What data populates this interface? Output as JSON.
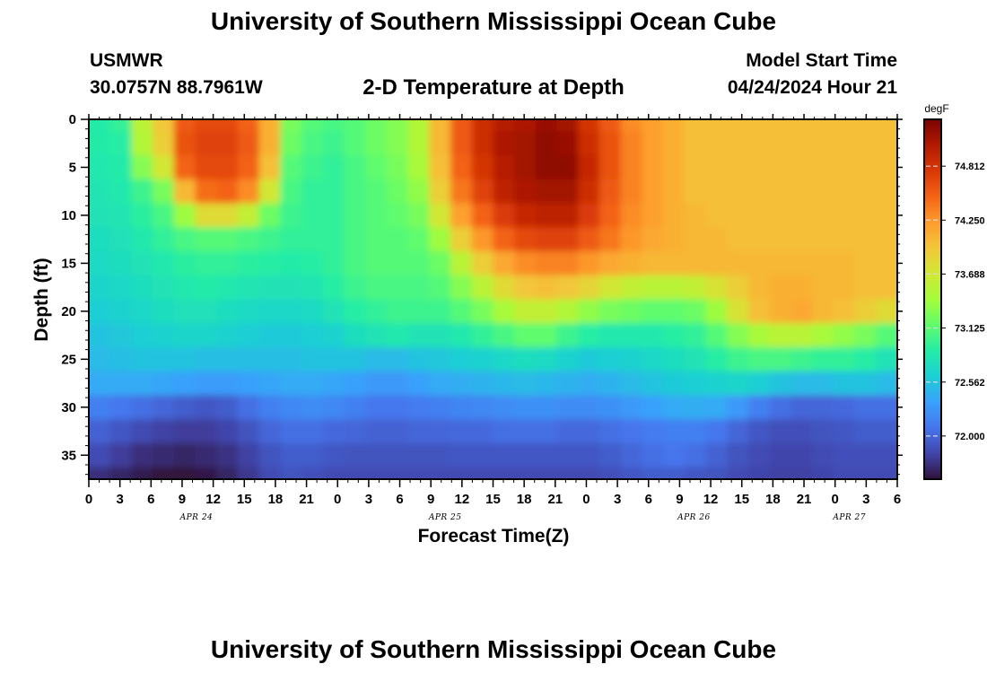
{
  "header": {
    "title": "University of Southern Mississippi Ocean Cube",
    "station": "USMWR",
    "coords": "30.0757N  88.7961W",
    "plot_title": "2-D Temperature at Depth",
    "model_label": "Model Start Time",
    "model_time": "04/24/2024 Hour 21"
  },
  "footer": {
    "title": "University of Southern Mississippi Ocean Cube"
  },
  "colors": {
    "scale": [
      "#30123b",
      "#4145ab",
      "#4675ed",
      "#39a2fc",
      "#1bcfd4",
      "#24eca6",
      "#61fc6c",
      "#a4fc3b",
      "#d1e834",
      "#f3c63a",
      "#fe9b2d",
      "#f36315",
      "#d93806",
      "#b11901",
      "#7a0402"
    ]
  },
  "chart_data": {
    "type": "heatmap",
    "title": "2-D Temperature at Depth",
    "xlabel": "Forecast Time(Z)",
    "ylabel": "Depth (ft)",
    "x_hours": [
      0,
      1,
      2,
      3,
      4,
      5,
      6,
      7,
      8,
      9,
      10,
      11,
      12,
      13,
      14,
      15,
      16,
      17,
      18,
      19,
      20,
      21,
      22,
      23,
      24,
      25,
      26
    ],
    "x_tick_labels": [
      "0",
      "3",
      "6",
      "9",
      "12",
      "15",
      "18",
      "21",
      "0",
      "3",
      "6",
      "9",
      "12",
      "15",
      "18",
      "21",
      "0",
      "3",
      "6",
      "9",
      "12",
      "15",
      "18",
      "21",
      "0",
      "3",
      "6"
    ],
    "date_labels": [
      {
        "hour": 3,
        "label": "APR 24"
      },
      {
        "hour": 11,
        "label": "APR 25"
      },
      {
        "hour": 19,
        "label": "APR 26"
      },
      {
        "hour": 24,
        "label": "APR 27"
      }
    ],
    "y_depths": [
      0,
      5,
      10,
      15,
      20,
      25,
      30,
      35
    ],
    "ylim": [
      0,
      37.5
    ],
    "colorbar": {
      "unit": "degF",
      "ticks": [
        "74.812",
        "74.250",
        "73.688",
        "73.125",
        "72.562",
        "72.000"
      ],
      "tick_values": [
        74.812,
        74.25,
        73.688,
        73.125,
        72.562,
        72.0
      ],
      "range": [
        71.55,
        75.3
      ]
    },
    "grid_depths": [
      0,
      2.5,
      5,
      7.5,
      10,
      12.5,
      15,
      17.5,
      20,
      22.5,
      25,
      27.5,
      30,
      32.5,
      35,
      37.5
    ],
    "grid_values": [
      [
        72.88,
        72.96,
        73.55,
        73.95,
        74.55,
        74.65,
        74.65,
        74.5,
        74.1,
        73.25,
        73.1,
        73.05,
        73.1,
        73.2,
        73.3,
        73.5,
        74.05,
        74.55,
        74.85,
        75.0,
        75.05,
        75.15,
        75.1,
        74.8,
        74.55,
        74.3,
        74.2,
        74.1,
        74.0,
        74.0,
        74.0,
        74.0,
        74.0,
        74.0,
        74.0,
        74.0,
        74.0,
        74.0
      ],
      [
        72.88,
        72.9,
        73.5,
        73.9,
        74.6,
        74.7,
        74.7,
        74.55,
        74.1,
        73.2,
        73.05,
        73.0,
        73.1,
        73.2,
        73.3,
        73.5,
        74.05,
        74.55,
        74.85,
        75.05,
        75.1,
        75.2,
        75.15,
        74.85,
        74.6,
        74.35,
        74.2,
        74.1,
        74.0,
        74.0,
        74.0,
        74.0,
        74.0,
        74.0,
        74.0,
        74.0,
        74.0,
        74.0
      ],
      [
        72.85,
        72.88,
        73.3,
        73.7,
        74.5,
        74.65,
        74.65,
        74.5,
        74.0,
        73.1,
        73.0,
        72.95,
        73.05,
        73.15,
        73.25,
        73.45,
        74.0,
        74.5,
        74.8,
        75.0,
        75.1,
        75.2,
        75.2,
        74.9,
        74.6,
        74.35,
        74.2,
        74.1,
        74.0,
        74.0,
        74.0,
        74.0,
        74.0,
        74.0,
        74.0,
        74.0,
        74.0,
        74.0
      ],
      [
        72.82,
        72.85,
        73.0,
        73.25,
        74.05,
        74.45,
        74.5,
        74.3,
        73.7,
        73.05,
        72.95,
        72.95,
        73.05,
        73.1,
        73.2,
        73.35,
        73.9,
        74.4,
        74.7,
        74.95,
        75.05,
        75.1,
        75.1,
        74.85,
        74.55,
        74.35,
        74.2,
        74.1,
        74.0,
        74.0,
        74.0,
        74.0,
        74.0,
        74.0,
        74.0,
        74.0,
        74.0,
        74.0
      ],
      [
        72.8,
        72.82,
        72.92,
        73.05,
        73.4,
        73.8,
        73.8,
        73.6,
        73.2,
        73.0,
        72.95,
        72.95,
        73.05,
        73.1,
        73.15,
        73.25,
        73.7,
        74.2,
        74.5,
        74.75,
        74.9,
        74.95,
        74.95,
        74.75,
        74.5,
        74.3,
        74.2,
        74.1,
        74.05,
        74.0,
        74.0,
        74.0,
        74.0,
        74.0,
        74.0,
        74.0,
        74.0,
        74.0
      ],
      [
        72.75,
        72.78,
        72.85,
        72.95,
        73.05,
        73.1,
        73.1,
        73.05,
        73.0,
        72.95,
        72.95,
        72.95,
        73.05,
        73.1,
        73.1,
        73.15,
        73.4,
        73.9,
        74.25,
        74.5,
        74.65,
        74.7,
        74.7,
        74.55,
        74.4,
        74.25,
        74.15,
        74.1,
        74.05,
        74.05,
        74.0,
        74.0,
        74.0,
        74.0,
        74.0,
        74.0,
        74.0,
        74.0
      ],
      [
        72.72,
        72.75,
        72.8,
        72.85,
        72.92,
        72.95,
        72.95,
        72.92,
        72.9,
        72.88,
        72.9,
        72.95,
        73.05,
        73.1,
        73.1,
        73.1,
        73.2,
        73.55,
        73.9,
        74.15,
        74.3,
        74.35,
        74.35,
        74.25,
        74.15,
        74.1,
        74.05,
        74.05,
        74.05,
        74.05,
        74.05,
        74.05,
        74.05,
        74.05,
        74.05,
        74.05,
        74.0,
        74.0
      ],
      [
        72.68,
        72.7,
        72.75,
        72.8,
        72.85,
        72.88,
        72.85,
        72.82,
        72.8,
        72.8,
        72.82,
        72.9,
        73.0,
        73.05,
        73.05,
        73.05,
        73.1,
        73.3,
        73.55,
        73.8,
        73.95,
        74.0,
        73.95,
        73.85,
        73.7,
        73.6,
        73.55,
        73.55,
        73.6,
        73.75,
        73.9,
        74.05,
        74.1,
        74.1,
        74.05,
        74.05,
        74.0,
        74.0
      ],
      [
        72.62,
        72.65,
        72.7,
        72.75,
        72.78,
        72.78,
        72.75,
        72.72,
        72.7,
        72.7,
        72.72,
        72.8,
        72.9,
        72.95,
        73.0,
        73.0,
        73.0,
        73.1,
        73.25,
        73.45,
        73.6,
        73.6,
        73.5,
        73.35,
        73.25,
        73.2,
        73.15,
        73.15,
        73.2,
        73.4,
        73.75,
        74.0,
        74.1,
        74.15,
        74.05,
        74.0,
        73.9,
        73.8
      ],
      [
        72.55,
        72.58,
        72.62,
        72.65,
        72.68,
        72.68,
        72.65,
        72.62,
        72.6,
        72.6,
        72.62,
        72.65,
        72.75,
        72.8,
        72.85,
        72.8,
        72.8,
        72.85,
        72.95,
        73.05,
        73.15,
        73.15,
        73.0,
        72.9,
        72.85,
        72.85,
        72.85,
        72.9,
        72.95,
        73.1,
        73.3,
        73.45,
        73.55,
        73.55,
        73.45,
        73.35,
        73.25,
        73.1
      ],
      [
        72.5,
        72.52,
        72.55,
        72.55,
        72.55,
        72.52,
        72.52,
        72.52,
        72.52,
        72.52,
        72.55,
        72.55,
        72.55,
        72.5,
        72.5,
        72.55,
        72.58,
        72.62,
        72.65,
        72.7,
        72.75,
        72.72,
        72.65,
        72.6,
        72.62,
        72.65,
        72.7,
        72.75,
        72.8,
        72.9,
        73.0,
        73.05,
        73.05,
        73.0,
        72.95,
        72.95,
        72.9,
        72.8
      ],
      [
        72.4,
        72.4,
        72.4,
        72.38,
        72.35,
        72.32,
        72.32,
        72.35,
        72.38,
        72.4,
        72.4,
        72.38,
        72.35,
        72.3,
        72.3,
        72.35,
        72.4,
        72.42,
        72.45,
        72.48,
        72.5,
        72.48,
        72.45,
        72.42,
        72.45,
        72.5,
        72.55,
        72.6,
        72.62,
        72.65,
        72.68,
        72.62,
        72.55,
        72.5,
        72.5,
        72.55,
        72.55,
        72.5
      ],
      [
        72.15,
        72.1,
        72.05,
        72.0,
        71.95,
        71.92,
        71.95,
        72.05,
        72.15,
        72.2,
        72.22,
        72.2,
        72.15,
        72.1,
        72.1,
        72.12,
        72.15,
        72.18,
        72.2,
        72.22,
        72.25,
        72.25,
        72.22,
        72.22,
        72.25,
        72.3,
        72.35,
        72.4,
        72.42,
        72.4,
        72.3,
        72.15,
        72.05,
        72.0,
        72.0,
        72.02,
        72.05,
        72.05
      ],
      [
        71.98,
        71.92,
        71.85,
        71.8,
        71.78,
        71.78,
        71.82,
        71.9,
        72.0,
        72.05,
        72.05,
        72.02,
        72.0,
        71.98,
        71.98,
        72.0,
        72.0,
        72.02,
        72.02,
        72.05,
        72.05,
        72.05,
        72.02,
        72.02,
        72.05,
        72.08,
        72.12,
        72.15,
        72.15,
        72.1,
        72.0,
        71.92,
        71.88,
        71.88,
        71.9,
        71.92,
        71.95,
        71.95
      ],
      [
        71.85,
        71.78,
        71.7,
        71.68,
        71.65,
        71.68,
        71.72,
        71.8,
        71.9,
        71.95,
        71.95,
        71.92,
        71.9,
        71.9,
        71.9,
        71.9,
        71.9,
        71.92,
        71.92,
        71.92,
        71.92,
        71.92,
        71.92,
        71.92,
        71.95,
        72.0,
        72.05,
        72.08,
        72.05,
        71.98,
        71.9,
        71.85,
        71.82,
        71.82,
        71.85,
        71.88,
        71.88,
        71.88
      ],
      [
        71.7,
        71.65,
        71.6,
        71.55,
        71.55,
        71.58,
        71.65,
        71.75,
        71.85,
        71.9,
        71.88,
        71.85,
        71.85,
        71.85,
        71.85,
        71.85,
        71.85,
        71.85,
        71.85,
        71.85,
        71.85,
        71.85,
        71.85,
        71.85,
        71.88,
        71.92,
        71.95,
        71.95,
        71.92,
        71.9,
        71.85,
        71.82,
        71.8,
        71.8,
        71.82,
        71.85,
        71.85,
        71.85
      ]
    ]
  }
}
